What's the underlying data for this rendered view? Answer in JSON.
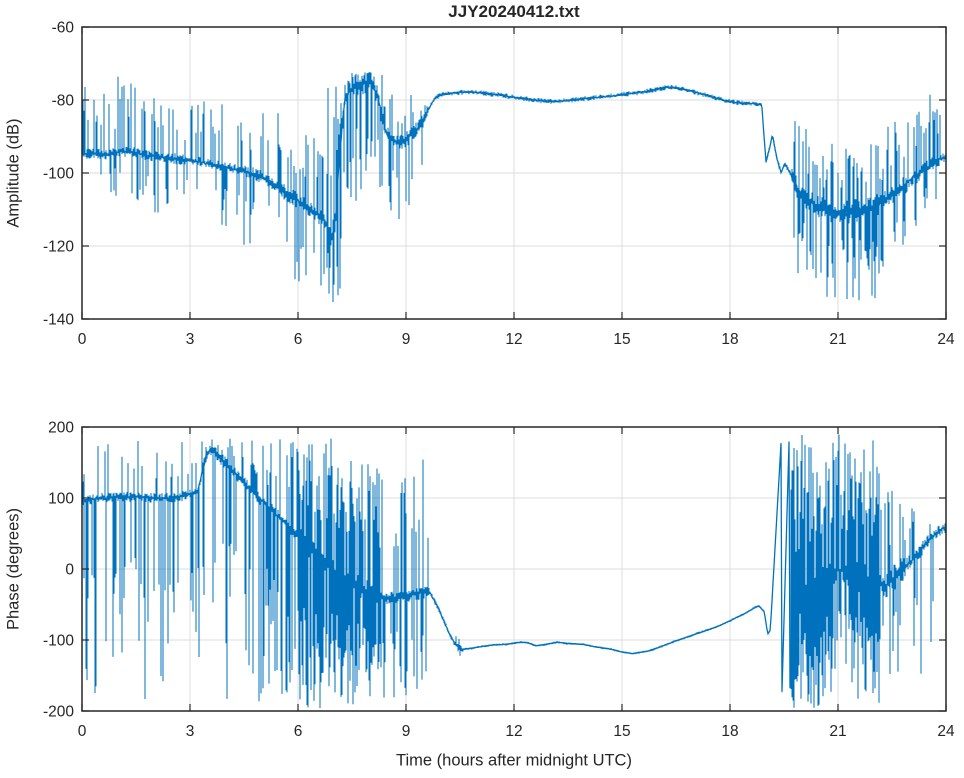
{
  "figure": {
    "title": "JJY20240412.txt",
    "background_color": "#ffffff",
    "line_color": "#0072BD",
    "grid_color": "#dcdcdc",
    "axis_color": "#262626",
    "grid_on": true
  },
  "chart_data": [
    {
      "type": "line",
      "name": "amplitude",
      "title": "JJY20240412.txt",
      "ylabel": "Amplitude (dB)",
      "xlabel": "",
      "xlim": [
        0,
        24
      ],
      "ylim": [
        -140,
        -60
      ],
      "xticks": [
        0,
        3,
        6,
        9,
        12,
        15,
        18,
        21,
        24
      ],
      "yticks": [
        -140,
        -120,
        -100,
        -80,
        -60
      ],
      "grid": true,
      "legend": null,
      "baseline": [
        [
          0,
          -95
        ],
        [
          0.3,
          -94.5
        ],
        [
          0.7,
          -95
        ],
        [
          1.1,
          -94
        ],
        [
          1.5,
          -94.5
        ],
        [
          2,
          -95.5
        ],
        [
          2.5,
          -96
        ],
        [
          3,
          -96.5
        ],
        [
          3.5,
          -97.5
        ],
        [
          4,
          -98.5
        ],
        [
          4.5,
          -99.5
        ],
        [
          5,
          -101
        ],
        [
          5.3,
          -103
        ],
        [
          5.6,
          -105
        ],
        [
          5.9,
          -107
        ],
        [
          6.2,
          -109
        ],
        [
          6.5,
          -111
        ],
        [
          6.8,
          -114
        ],
        [
          6.95,
          -118
        ],
        [
          7.05,
          -112
        ],
        [
          7.15,
          -95
        ],
        [
          7.3,
          -80
        ],
        [
          7.45,
          -77
        ],
        [
          7.6,
          -76
        ],
        [
          7.8,
          -75.5
        ],
        [
          8,
          -75
        ],
        [
          8.15,
          -77
        ],
        [
          8.3,
          -83
        ],
        [
          8.45,
          -89
        ],
        [
          8.6,
          -91
        ],
        [
          8.8,
          -92
        ],
        [
          9,
          -91
        ],
        [
          9.2,
          -89
        ],
        [
          9.4,
          -87
        ],
        [
          9.6,
          -83
        ],
        [
          9.8,
          -79.5
        ],
        [
          10,
          -78.5
        ],
        [
          10.4,
          -78
        ],
        [
          10.8,
          -77.8
        ],
        [
          11.2,
          -78.2
        ],
        [
          11.6,
          -78.6
        ],
        [
          12,
          -79.3
        ],
        [
          12.4,
          -79.8
        ],
        [
          12.8,
          -80.3
        ],
        [
          13.2,
          -80.4
        ],
        [
          13.6,
          -80
        ],
        [
          14,
          -79.6
        ],
        [
          14.4,
          -79.2
        ],
        [
          14.8,
          -78.8
        ],
        [
          15.2,
          -78.3
        ],
        [
          15.6,
          -77.8
        ],
        [
          16,
          -77
        ],
        [
          16.3,
          -76.5
        ],
        [
          16.6,
          -76.8
        ],
        [
          17,
          -77.8
        ],
        [
          17.4,
          -78.8
        ],
        [
          17.8,
          -80
        ],
        [
          18.2,
          -80.8
        ],
        [
          18.6,
          -81
        ],
        [
          18.88,
          -81.2
        ],
        [
          19,
          -97
        ],
        [
          19.08,
          -94
        ],
        [
          19.18,
          -89.5
        ],
        [
          19.3,
          -96
        ],
        [
          19.42,
          -100
        ],
        [
          19.52,
          -97.5
        ],
        [
          19.62,
          -99
        ],
        [
          19.72,
          -101
        ],
        [
          19.85,
          -104
        ],
        [
          20,
          -106
        ],
        [
          20.3,
          -108.5
        ],
        [
          20.7,
          -110
        ],
        [
          21,
          -111
        ],
        [
          21.4,
          -110.5
        ],
        [
          21.8,
          -109.5
        ],
        [
          22.2,
          -108
        ],
        [
          22.6,
          -105.5
        ],
        [
          23,
          -102
        ],
        [
          23.4,
          -99
        ],
        [
          23.7,
          -97
        ],
        [
          24,
          -95.5
        ]
      ],
      "noise_bands": [
        {
          "t0": 0,
          "t1": 1.0,
          "up": -76,
          "dn": -108,
          "pUp": 0.28,
          "pDn": 0.16,
          "j": 1.5
        },
        {
          "t0": 1.0,
          "t1": 1.6,
          "up": -72,
          "dn": -110,
          "pUp": 0.3,
          "pDn": 0.18,
          "j": 1.5
        },
        {
          "t0": 1.6,
          "t1": 3.0,
          "up": -79,
          "dn": -112,
          "pUp": 0.3,
          "pDn": 0.2,
          "j": 1.5
        },
        {
          "t0": 3.0,
          "t1": 4.5,
          "up": -80,
          "dn": -116,
          "pUp": 0.3,
          "pDn": 0.22,
          "j": 1.5
        },
        {
          "t0": 4.5,
          "t1": 5.6,
          "up": -82,
          "dn": -123,
          "pUp": 0.3,
          "pDn": 0.25,
          "j": 1.8
        },
        {
          "t0": 5.6,
          "t1": 6.8,
          "up": -88,
          "dn": -131,
          "pUp": 0.26,
          "pDn": 0.3,
          "j": 2.2
        },
        {
          "t0": 6.8,
          "t1": 7.2,
          "up": -75,
          "dn": -136,
          "pUp": 0.55,
          "pDn": 0.7,
          "j": 4
        },
        {
          "t0": 7.2,
          "t1": 8.35,
          "up": -72,
          "dn": -112,
          "pUp": 0.5,
          "pDn": 0.6,
          "j": 3
        },
        {
          "t0": 8.35,
          "t1": 9.6,
          "up": -76,
          "dn": -114,
          "pUp": 0.33,
          "pDn": 0.35,
          "j": 2.2
        },
        {
          "t0": 9.6,
          "t1": 18.88,
          "up": 0,
          "dn": 0,
          "pUp": 0,
          "pDn": 0,
          "j": 0.7
        },
        {
          "t0": 18.88,
          "t1": 19.72,
          "up": 0,
          "dn": 0,
          "pUp": 0,
          "pDn": 0,
          "j": 0.8
        },
        {
          "t0": 19.72,
          "t1": 20.3,
          "up": -85,
          "dn": -130,
          "pUp": 0.4,
          "pDn": 0.45,
          "j": 3
        },
        {
          "t0": 20.3,
          "t1": 22.3,
          "up": -92,
          "dn": -135,
          "pUp": 0.42,
          "pDn": 0.5,
          "j": 3.2
        },
        {
          "t0": 22.3,
          "t1": 23.2,
          "up": -83,
          "dn": -121,
          "pUp": 0.38,
          "pDn": 0.32,
          "j": 2.6
        },
        {
          "t0": 23.2,
          "t1": 24.01,
          "up": -77,
          "dn": -112,
          "pUp": 0.38,
          "pDn": 0.28,
          "j": 2
        }
      ]
    },
    {
      "type": "line",
      "name": "phase",
      "title": "",
      "ylabel": "Phase (degrees)",
      "xlabel": "Time (hours after midnight UTC)",
      "xlim": [
        0,
        24
      ],
      "ylim": [
        -200,
        200
      ],
      "xticks": [
        0,
        3,
        6,
        9,
        12,
        15,
        18,
        21,
        24
      ],
      "yticks": [
        -200,
        -100,
        0,
        100,
        200
      ],
      "grid": true,
      "legend": null,
      "baseline": [
        [
          0,
          95
        ],
        [
          0.5,
          100
        ],
        [
          1,
          101
        ],
        [
          1.5,
          102
        ],
        [
          2,
          100
        ],
        [
          2.6,
          100
        ],
        [
          3.2,
          108
        ],
        [
          3.45,
          160
        ],
        [
          3.6,
          170
        ],
        [
          4,
          148
        ],
        [
          4.5,
          122
        ],
        [
          5,
          96
        ],
        [
          5.5,
          72
        ],
        [
          6,
          45
        ],
        [
          6.5,
          22
        ],
        [
          7,
          -2
        ],
        [
          7.5,
          -20
        ],
        [
          8,
          -32
        ],
        [
          8.5,
          -42
        ],
        [
          9,
          -38
        ],
        [
          9.65,
          -32
        ],
        [
          9.9,
          -55
        ],
        [
          10.15,
          -85
        ],
        [
          10.35,
          -105
        ],
        [
          10.55,
          -113
        ],
        [
          10.8,
          -112
        ],
        [
          11,
          -110
        ],
        [
          11.4,
          -107
        ],
        [
          11.8,
          -106
        ],
        [
          12.2,
          -103
        ],
        [
          12.4,
          -104
        ],
        [
          12.6,
          -108
        ],
        [
          12.9,
          -106
        ],
        [
          13.2,
          -103
        ],
        [
          13.5,
          -105
        ],
        [
          13.9,
          -106
        ],
        [
          14.3,
          -110
        ],
        [
          14.7,
          -113
        ],
        [
          15,
          -117
        ],
        [
          15.3,
          -119
        ],
        [
          15.7,
          -116
        ],
        [
          16,
          -111
        ],
        [
          16.4,
          -103
        ],
        [
          16.8,
          -96
        ],
        [
          17.2,
          -89
        ],
        [
          17.6,
          -82
        ],
        [
          18,
          -73
        ],
        [
          18.4,
          -63
        ],
        [
          18.7,
          -54
        ],
        [
          18.8,
          -52
        ],
        [
          18.95,
          -60
        ],
        [
          19.05,
          -92
        ],
        [
          19.12,
          -86
        ],
        [
          19.42,
          180
        ],
        [
          19.44,
          -180
        ],
        [
          19.64,
          180
        ],
        [
          19.66,
          -170
        ],
        [
          19.9,
          -60
        ],
        [
          20.3,
          -20
        ],
        [
          21,
          0
        ],
        [
          21.6,
          -10
        ],
        [
          22,
          -20
        ],
        [
          22.3,
          -25
        ],
        [
          22.6,
          -10
        ],
        [
          22.9,
          5
        ],
        [
          23.1,
          15
        ],
        [
          23.35,
          30
        ],
        [
          23.6,
          45
        ],
        [
          23.8,
          52
        ],
        [
          24,
          60
        ]
      ],
      "noise_bands": [
        {
          "t0": 0,
          "t1": 3.2,
          "up": 183,
          "dn": -186,
          "pUp": 0.15,
          "pDn": 0.38,
          "j": 7
        },
        {
          "t0": 3.2,
          "t1": 6.0,
          "up": 185,
          "dn": -188,
          "pUp": 0.28,
          "pDn": 0.45,
          "j": 9
        },
        {
          "t0": 6.0,
          "t1": 8.3,
          "up": 188,
          "dn": -196,
          "pUp": 0.75,
          "pDn": 0.85,
          "j": 16
        },
        {
          "t0": 8.3,
          "t1": 9.65,
          "up": 183,
          "dn": -186,
          "pUp": 0.33,
          "pDn": 0.4,
          "j": 9
        },
        {
          "t0": 9.65,
          "t1": 10.35,
          "up": 0,
          "dn": 0,
          "pUp": 0,
          "pDn": 0,
          "j": 4
        },
        {
          "t0": 10.35,
          "t1": 10.6,
          "up": -92,
          "dn": -128,
          "pUp": 0.3,
          "pDn": 0.3,
          "j": 4
        },
        {
          "t0": 10.6,
          "t1": 18.9,
          "up": 0,
          "dn": 0,
          "pUp": 0,
          "pDn": 0,
          "j": 1.2
        },
        {
          "t0": 18.9,
          "t1": 19.68,
          "up": 0,
          "dn": 0,
          "pUp": 0,
          "pDn": 0,
          "j": 2
        },
        {
          "t0": 19.68,
          "t1": 22.15,
          "up": 190,
          "dn": -196,
          "pUp": 0.85,
          "pDn": 0.85,
          "j": 25
        },
        {
          "t0": 22.15,
          "t1": 22.9,
          "up": 125,
          "dn": -155,
          "pUp": 0.3,
          "pDn": 0.35,
          "j": 18
        },
        {
          "t0": 22.9,
          "t1": 23.35,
          "up": 110,
          "dn": -175,
          "pUp": 0.2,
          "pDn": 0.2,
          "j": 11
        },
        {
          "t0": 23.35,
          "t1": 24.01,
          "up": 105,
          "dn": -165,
          "pUp": 0.15,
          "pDn": 0.12,
          "j": 9
        }
      ]
    }
  ]
}
